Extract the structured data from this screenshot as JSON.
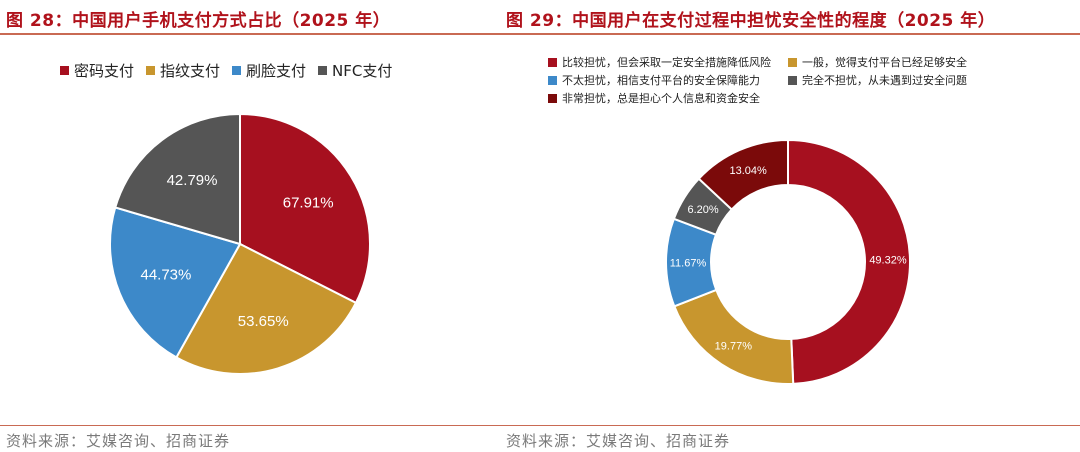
{
  "left": {
    "title": "图 28：中国用户手机支付方式占比（2025 年）",
    "source": "资料来源：艾媒咨询、招商证券",
    "chart_data": {
      "type": "pie",
      "title": "中国用户手机支付方式占比（2025 年）",
      "categories": [
        "密码支付",
        "指纹支付",
        "刷脸支付",
        "NFC支付"
      ],
      "values": [
        67.91,
        53.65,
        44.73,
        42.79
      ],
      "labels": [
        "67.91%",
        "53.65%",
        "44.73%",
        "42.79%"
      ],
      "colors": [
        "#a6101f",
        "#c8962e",
        "#3d89c9",
        "#555555"
      ],
      "legend": "top"
    }
  },
  "right": {
    "title": "图 29：中国用户在支付过程中担忧安全性的程度（2025 年）",
    "source": "资料来源：艾媒咨询、招商证券",
    "chart_data": {
      "type": "pie",
      "subtype": "donut",
      "title": "中国用户在支付过程中担忧安全性的程度（2025 年）",
      "categories": [
        "比较担忧，但会采取一定安全措施降低风险",
        "一般，觉得支付平台已经足够安全",
        "不太担忧，相信支付平台的安全保障能力",
        "完全不担忧，从未遇到过安全问题",
        "非常担忧，总是担心个人信息和资金安全"
      ],
      "values": [
        49.32,
        19.77,
        11.67,
        6.2,
        13.04
      ],
      "labels": [
        "49.32%",
        "19.77%",
        "11.67%",
        "6.20%",
        "13.04%"
      ],
      "colors": [
        "#a6101f",
        "#c8962e",
        "#3d89c9",
        "#555555",
        "#7b0a0a"
      ],
      "legend": "top"
    }
  }
}
